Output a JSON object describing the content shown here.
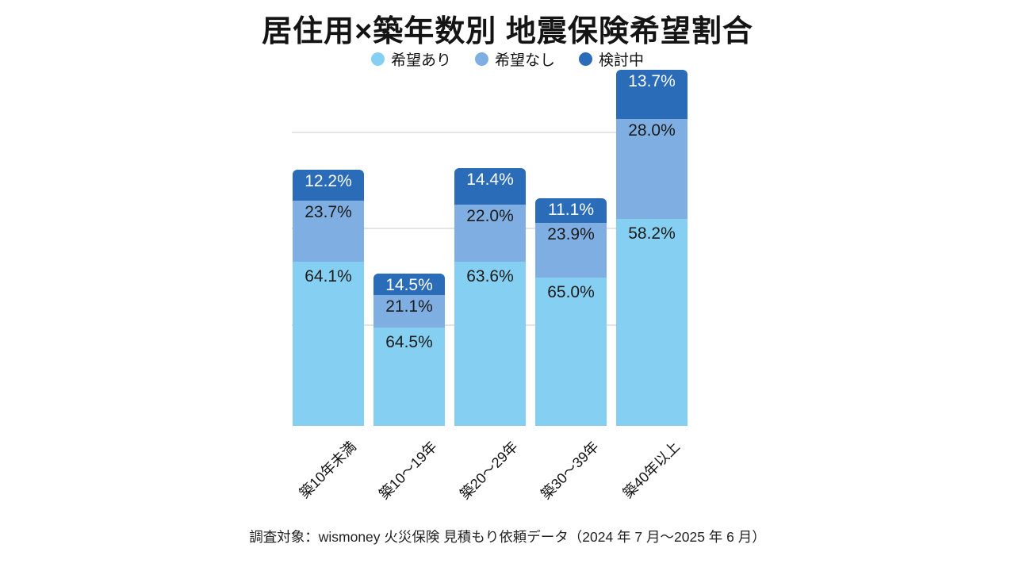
{
  "title": "居住用×築年数別 地震保険希望割合",
  "footer": "調査対象：wismoney 火災保険 見積もり依頼データ（2024 年 7 月〜2025 年 6 月）",
  "chart_data": {
    "type": "bar",
    "stacked": true,
    "title": "居住用×築年数別 地震保険希望割合",
    "categories": [
      "築10年未満",
      "築10〜19年",
      "築20〜29年",
      "築30〜39年",
      "築40年以上"
    ],
    "series": [
      {
        "name": "希望あり",
        "color": "#85D0F2",
        "values": [
          64.1,
          64.5,
          63.6,
          65.0,
          58.2
        ]
      },
      {
        "name": "希望なし",
        "color": "#7FAFE2",
        "values": [
          23.7,
          21.1,
          22.0,
          23.9,
          28.0
        ]
      },
      {
        "name": "検討中",
        "color": "#2A6CB8",
        "values": [
          12.2,
          14.5,
          14.4,
          11.1,
          13.7
        ]
      }
    ],
    "unit": "%",
    "value_format": "one_decimal_percent",
    "bar_relative_heights": [
      0.719,
      0.428,
      0.724,
      0.639,
      1.0
    ],
    "legend_position": "top",
    "grid": true,
    "xlabel": "",
    "ylabel": ""
  }
}
